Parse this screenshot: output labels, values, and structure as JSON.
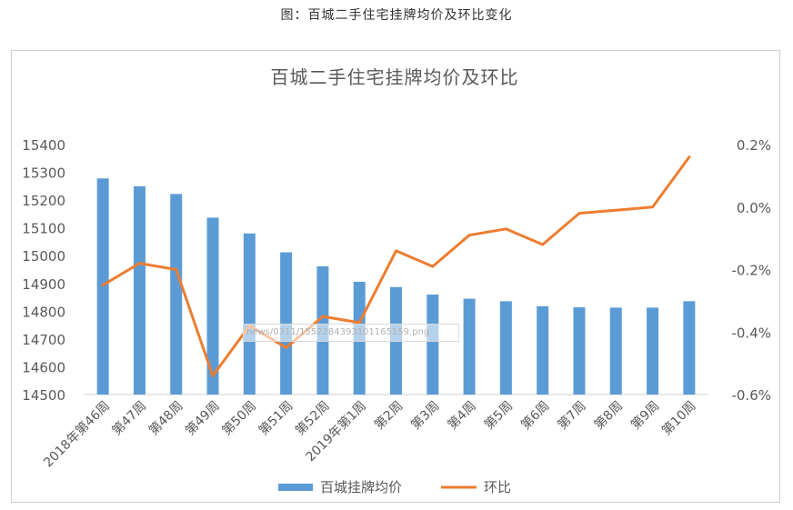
{
  "caption": "图：百城二手住宅挂牌均价及环比变化",
  "watermark_text": "news/0311/1552284393101165159.png",
  "chart_data": {
    "type": "bar+line",
    "title": "百城二手住宅挂牌均价及环比",
    "categories": [
      "2018年第46周",
      "第47周",
      "第48周",
      "第49周",
      "第50周",
      "第51周",
      "第52周",
      "2019年第1周",
      "第2周",
      "第3周",
      "第4周",
      "第5周",
      "第6周",
      "第7周",
      "第8周",
      "第9周",
      "第10周"
    ],
    "series": [
      {
        "name": "百城挂牌均价",
        "type": "bar",
        "axis": "left",
        "color": "#5b9bd5",
        "values": [
          15278,
          15250,
          15222,
          15137,
          15080,
          15012,
          14962,
          14906,
          14887,
          14860,
          14845,
          14836,
          14818,
          14814,
          14813,
          14813,
          14836
        ]
      },
      {
        "name": "环比",
        "type": "line",
        "axis": "right",
        "color": "#ed7d31",
        "values": [
          -0.25,
          -0.18,
          -0.2,
          -0.54,
          -0.38,
          -0.45,
          -0.35,
          -0.37,
          -0.14,
          -0.19,
          -0.09,
          -0.07,
          -0.12,
          -0.02,
          -0.01,
          0.0,
          0.16
        ]
      }
    ],
    "y_left": {
      "min": 14500,
      "max": 15400,
      "ticks": [
        "15400",
        "15300",
        "15200",
        "15100",
        "15000",
        "14900",
        "14800",
        "14700",
        "14600",
        "14500"
      ]
    },
    "y_right": {
      "min": -0.6,
      "max": 0.2,
      "ticks": [
        "0.2%",
        "0.0%",
        "-0.2%",
        "-0.4%",
        "-0.6%"
      ]
    },
    "grid": false,
    "legend_position": "bottom"
  }
}
